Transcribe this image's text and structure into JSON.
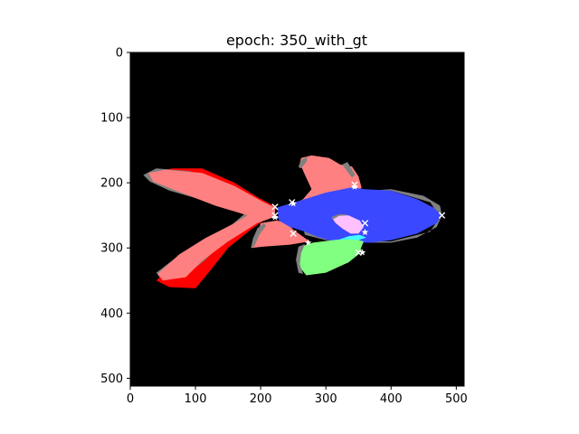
{
  "chart_data": {
    "type": "image",
    "title": "epoch: 350_with_gt",
    "image_size": [
      512,
      512
    ],
    "xlim": [
      0,
      512
    ],
    "ylim": [
      512,
      0
    ],
    "xticks": [
      0,
      100,
      200,
      300,
      400,
      500
    ],
    "yticks": [
      0,
      100,
      200,
      300,
      400,
      500
    ],
    "background_color": "#000000",
    "grid": false,
    "legend": "none",
    "regions": [
      {
        "name": "tail-gt",
        "color": "#ff0000",
        "points": [
          [
            32,
            183
          ],
          [
            65,
            178
          ],
          [
            110,
            178
          ],
          [
            160,
            200
          ],
          [
            195,
            222
          ],
          [
            225,
            238
          ],
          [
            215,
            250
          ],
          [
            185,
            272
          ],
          [
            150,
            300
          ],
          [
            120,
            338
          ],
          [
            100,
            362
          ],
          [
            60,
            360
          ],
          [
            40,
            350
          ],
          [
            70,
            322
          ],
          [
            110,
            295
          ],
          [
            160,
            270
          ],
          [
            180,
            250
          ],
          [
            130,
            225
          ],
          [
            80,
            200
          ]
        ]
      },
      {
        "name": "tail-shadow",
        "color": "#808080",
        "points": [
          [
            20,
            188
          ],
          [
            40,
            178
          ],
          [
            90,
            182
          ],
          [
            140,
            198
          ],
          [
            190,
            222
          ],
          [
            218,
            240
          ],
          [
            205,
            248
          ],
          [
            185,
            258
          ],
          [
            150,
            285
          ],
          [
            115,
            318
          ],
          [
            85,
            342
          ],
          [
            45,
            345
          ],
          [
            40,
            338
          ],
          [
            70,
            315
          ],
          [
            110,
            290
          ],
          [
            155,
            265
          ],
          [
            175,
            248
          ],
          [
            130,
            232
          ],
          [
            60,
            212
          ],
          [
            30,
            198
          ]
        ]
      },
      {
        "name": "tail-pred",
        "color": "#ff8080",
        "points": [
          [
            28,
            185
          ],
          [
            55,
            180
          ],
          [
            110,
            185
          ],
          [
            160,
            205
          ],
          [
            205,
            230
          ],
          [
            222,
            238
          ],
          [
            222,
            252
          ],
          [
            195,
            262
          ],
          [
            150,
            290
          ],
          [
            110,
            320
          ],
          [
            85,
            345
          ],
          [
            50,
            350
          ],
          [
            42,
            340
          ],
          [
            75,
            310
          ],
          [
            115,
            285
          ],
          [
            160,
            262
          ],
          [
            180,
            250
          ],
          [
            130,
            235
          ],
          [
            70,
            212
          ],
          [
            35,
            198
          ]
        ]
      },
      {
        "name": "lower-fin-pred",
        "color": "#ff8080",
        "points": [
          [
            200,
            262
          ],
          [
            225,
            258
          ],
          [
            240,
            262
          ],
          [
            250,
            272
          ],
          [
            275,
            290
          ],
          [
            245,
            295
          ],
          [
            205,
            298
          ],
          [
            185,
            300
          ],
          [
            188,
            292
          ],
          [
            195,
            280
          ]
        ]
      },
      {
        "name": "lower-fin-shadow",
        "color": "#808080",
        "points": [
          [
            195,
            270
          ],
          [
            205,
            262
          ],
          [
            208,
            266
          ],
          [
            198,
            280
          ],
          [
            190,
            298
          ],
          [
            185,
            300
          ],
          [
            188,
            286
          ]
        ]
      },
      {
        "name": "dorsal-gt",
        "color": "#ff8080",
        "points": [
          [
            252,
            232
          ],
          [
            265,
            225
          ],
          [
            278,
            210
          ],
          [
            268,
            188
          ],
          [
            260,
            170
          ],
          [
            262,
            162
          ],
          [
            278,
            158
          ],
          [
            305,
            162
          ],
          [
            322,
            172
          ],
          [
            340,
            175
          ],
          [
            350,
            190
          ],
          [
            355,
            208
          ],
          [
            330,
            218
          ],
          [
            300,
            224
          ],
          [
            275,
            228
          ]
        ]
      },
      {
        "name": "dorsal-shadow",
        "color": "#808080",
        "points": [
          [
            258,
            176
          ],
          [
            262,
            165
          ],
          [
            272,
            160
          ],
          [
            270,
            168
          ],
          [
            262,
            178
          ]
        ]
      },
      {
        "name": "dorsal-ray",
        "color": "#808080",
        "points": [
          [
            325,
            172
          ],
          [
            333,
            168
          ],
          [
            345,
            188
          ],
          [
            340,
            192
          ]
        ]
      },
      {
        "name": "body-shadow",
        "color": "#808080",
        "points": [
          [
            320,
            215
          ],
          [
            400,
            210
          ],
          [
            450,
            220
          ],
          [
            475,
            235
          ],
          [
            478,
            250
          ],
          [
            470,
            268
          ],
          [
            440,
            284
          ],
          [
            400,
            292
          ],
          [
            370,
            292
          ],
          [
            300,
            288
          ],
          [
            268,
            280
          ],
          [
            265,
            270
          ],
          [
            320,
            290
          ],
          [
            400,
            290
          ],
          [
            460,
            275
          ],
          [
            475,
            252
          ],
          [
            460,
            230
          ],
          [
            400,
            212
          ]
        ]
      },
      {
        "name": "body-pred",
        "color": "#3a48ff",
        "points": [
          [
            225,
            238
          ],
          [
            245,
            232
          ],
          [
            268,
            225
          ],
          [
            300,
            215
          ],
          [
            340,
            207
          ],
          [
            360,
            210
          ],
          [
            400,
            212
          ],
          [
            440,
            225
          ],
          [
            465,
            238
          ],
          [
            478,
            250
          ],
          [
            470,
            262
          ],
          [
            440,
            278
          ],
          [
            400,
            288
          ],
          [
            370,
            292
          ],
          [
            345,
            292
          ],
          [
            310,
            290
          ],
          [
            285,
            282
          ],
          [
            268,
            275
          ],
          [
            245,
            268
          ],
          [
            228,
            258
          ]
        ]
      },
      {
        "name": "eye-pred",
        "color": "#ffc0ff",
        "points": [
          [
            310,
            255
          ],
          [
            318,
            250
          ],
          [
            335,
            250
          ],
          [
            352,
            258
          ],
          [
            358,
            268
          ],
          [
            350,
            278
          ],
          [
            338,
            278
          ],
          [
            325,
            270
          ],
          [
            315,
            262
          ]
        ]
      },
      {
        "name": "eye-shadow",
        "color": "#808080",
        "points": [
          [
            308,
            253
          ],
          [
            320,
            248
          ],
          [
            335,
            249
          ],
          [
            320,
            251
          ],
          [
            311,
            256
          ]
        ]
      },
      {
        "name": "pectoral-fin-pred",
        "color": "#80ff80",
        "points": [
          [
            262,
            298
          ],
          [
            280,
            292
          ],
          [
            310,
            288
          ],
          [
            340,
            285
          ],
          [
            358,
            290
          ],
          [
            350,
            310
          ],
          [
            335,
            322
          ],
          [
            300,
            338
          ],
          [
            270,
            342
          ],
          [
            260,
            330
          ],
          [
            258,
            310
          ]
        ]
      },
      {
        "name": "pectoral-fin-shadow",
        "color": "#808080",
        "points": [
          [
            258,
            298
          ],
          [
            268,
            294
          ],
          [
            262,
            308
          ],
          [
            260,
            325
          ],
          [
            265,
            340
          ],
          [
            258,
            338
          ],
          [
            254,
            318
          ]
        ]
      },
      {
        "name": "pectoral-fin-gt",
        "color": "#40ffff",
        "points": [
          [
            318,
            288
          ],
          [
            335,
            282
          ],
          [
            352,
            280
          ],
          [
            362,
            284
          ],
          [
            350,
            288
          ],
          [
            335,
            287
          ]
        ]
      }
    ],
    "keypoints_gt": [
      [
        222,
        237
      ],
      [
        248,
        230
      ],
      [
        344,
        203
      ],
      [
        478,
        250
      ],
      [
        360,
        262
      ],
      [
        350,
        307
      ],
      [
        250,
        278
      ],
      [
        222,
        250
      ]
    ],
    "keypoints_pred": [
      [
        222,
        253
      ],
      [
        250,
        232
      ],
      [
        273,
        292
      ],
      [
        356,
        307
      ],
      [
        360,
        276
      ],
      [
        344,
        206
      ]
    ]
  }
}
